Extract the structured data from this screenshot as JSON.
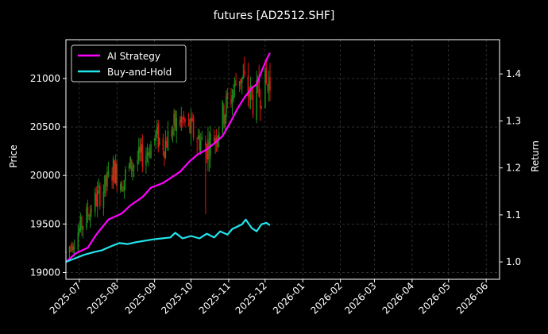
{
  "chart_data": {
    "type": "line",
    "title": "futures [AD2512.SHF]",
    "ylabel_left": "Price",
    "ylabel_right": "Return",
    "xlabel": "",
    "x_ticks": [
      "2025-07",
      "2025-08",
      "2025-09",
      "2025-10",
      "2025-11",
      "2025-12",
      "2026-01",
      "2026-02",
      "2026-03",
      "2026-04",
      "2026-05",
      "2026-06"
    ],
    "xlim": [
      "2025-06-20",
      "2026-06-12"
    ],
    "y_left_ticks": [
      19000,
      19500,
      20000,
      20500,
      21000
    ],
    "ylim_left": [
      18930,
      21400
    ],
    "y_right_ticks": [
      1.0,
      1.1,
      1.2,
      1.3,
      1.4
    ],
    "ylim_right": [
      0.963,
      1.473
    ],
    "grid": true,
    "legend_placement": "top-left",
    "colors": {
      "up": "#1a8a1a",
      "down": "#e01515",
      "ai": "#ff00ff",
      "bh": "#22e5ee",
      "grid": "#4a4a4a"
    },
    "series": [
      {
        "name": "AI Strategy",
        "axis": "right",
        "x": [
          "2025-06-20",
          "2025-06-28",
          "2025-07-08",
          "2025-07-15",
          "2025-07-25",
          "2025-08-05",
          "2025-08-12",
          "2025-08-22",
          "2025-08-29",
          "2025-09-08",
          "2025-09-15",
          "2025-09-22",
          "2025-09-29",
          "2025-10-06",
          "2025-10-13",
          "2025-10-20",
          "2025-10-27",
          "2025-11-03",
          "2025-11-08",
          "2025-11-14",
          "2025-11-20",
          "2025-11-24",
          "2025-11-28",
          "2025-12-02",
          "2025-12-05"
        ],
        "values": [
          1.0,
          1.018,
          1.03,
          1.058,
          1.09,
          1.103,
          1.12,
          1.138,
          1.158,
          1.168,
          1.18,
          1.192,
          1.212,
          1.228,
          1.238,
          1.252,
          1.268,
          1.3,
          1.325,
          1.35,
          1.37,
          1.378,
          1.405,
          1.43,
          1.445
        ]
      },
      {
        "name": "Buy-and-Hold",
        "axis": "right",
        "x": [
          "2025-06-20",
          "2025-06-28",
          "2025-07-05",
          "2025-07-12",
          "2025-07-20",
          "2025-07-27",
          "2025-08-03",
          "2025-08-10",
          "2025-08-17",
          "2025-08-24",
          "2025-08-31",
          "2025-09-07",
          "2025-09-14",
          "2025-09-18",
          "2025-09-24",
          "2025-10-01",
          "2025-10-08",
          "2025-10-14",
          "2025-10-20",
          "2025-10-25",
          "2025-10-31",
          "2025-11-04",
          "2025-11-08",
          "2025-11-12",
          "2025-11-15",
          "2025-11-20",
          "2025-11-24",
          "2025-11-28",
          "2025-12-02",
          "2025-12-05"
        ],
        "values": [
          1.0,
          1.008,
          1.015,
          1.02,
          1.025,
          1.033,
          1.04,
          1.038,
          1.042,
          1.045,
          1.048,
          1.05,
          1.052,
          1.062,
          1.05,
          1.055,
          1.05,
          1.06,
          1.052,
          1.065,
          1.058,
          1.07,
          1.075,
          1.08,
          1.09,
          1.072,
          1.065,
          1.08,
          1.083,
          1.078
        ]
      }
    ],
    "candles_price_path": {
      "x": [
        "2025-06-20",
        "2025-06-30",
        "2025-07-08",
        "2025-07-15",
        "2025-07-22",
        "2025-07-29",
        "2025-08-05",
        "2025-08-12",
        "2025-08-19",
        "2025-08-26",
        "2025-09-02",
        "2025-09-09",
        "2025-09-16",
        "2025-09-23",
        "2025-09-30",
        "2025-10-07",
        "2025-10-14",
        "2025-10-21",
        "2025-10-28",
        "2025-11-04",
        "2025-11-10",
        "2025-11-16",
        "2025-11-22",
        "2025-11-28",
        "2025-12-05"
      ],
      "close": [
        19200,
        19420,
        19600,
        19760,
        19880,
        20070,
        19930,
        20090,
        20170,
        20250,
        20400,
        20320,
        20490,
        20570,
        20480,
        20380,
        20300,
        20420,
        20650,
        20850,
        21050,
        20880,
        20760,
        20900,
        20950
      ],
      "range": [
        80,
        100,
        110,
        120,
        120,
        130,
        120,
        120,
        120,
        120,
        130,
        130,
        140,
        140,
        140,
        140,
        150,
        150,
        150,
        160,
        160,
        170,
        170,
        170,
        180
      ]
    }
  }
}
